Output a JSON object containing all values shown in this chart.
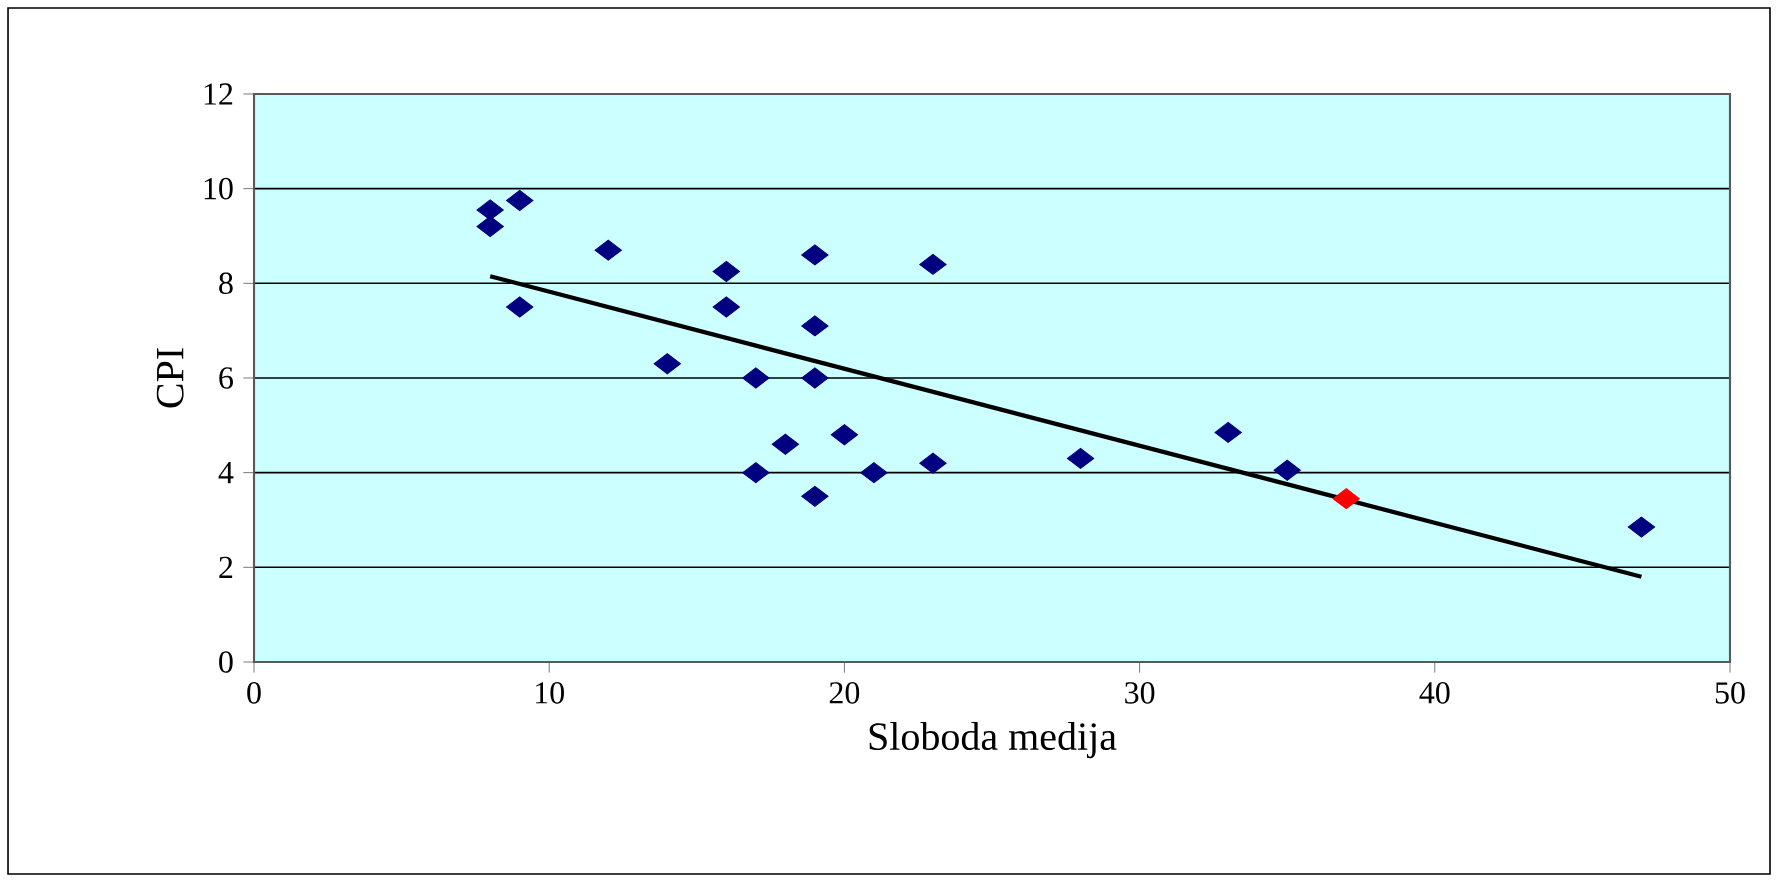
{
  "chart_data": {
    "type": "scatter",
    "xlabel": "Sloboda medija",
    "ylabel": "CPI",
    "xlim": [
      0,
      50
    ],
    "xticks": [
      0,
      10,
      20,
      30,
      40,
      50
    ],
    "ylim": [
      0,
      12
    ],
    "yticks": [
      0,
      2,
      4,
      6,
      8,
      10,
      12
    ],
    "grid": "y",
    "series": [
      {
        "marker": "diamond",
        "x": [
          8,
          8,
          9,
          9,
          12,
          14,
          16,
          16,
          17,
          17,
          18,
          19,
          19,
          19,
          19,
          20,
          21,
          23,
          23,
          28,
          33,
          35,
          37,
          47
        ],
        "values": [
          9.55,
          9.2,
          9.75,
          7.5,
          8.7,
          6.3,
          8.25,
          7.5,
          6.0,
          4.0,
          4.6,
          8.6,
          7.1,
          6.0,
          3.5,
          4.8,
          4.0,
          8.4,
          4.2,
          4.3,
          4.85,
          4.05,
          3.45,
          2.85
        ],
        "colors": [
          "#000080",
          "#000080",
          "#000080",
          "#000080",
          "#000080",
          "#000080",
          "#000080",
          "#000080",
          "#000080",
          "#000080",
          "#000080",
          "#000080",
          "#000080",
          "#000080",
          "#000080",
          "#000080",
          "#000080",
          "#000080",
          "#000080",
          "#000080",
          "#000080",
          "#000080",
          "#ff0000",
          "#000080"
        ]
      },
      {
        "type": "line",
        "x": [
          8,
          47
        ],
        "values": [
          8.15,
          1.8
        ],
        "color": "#000000"
      }
    ]
  }
}
